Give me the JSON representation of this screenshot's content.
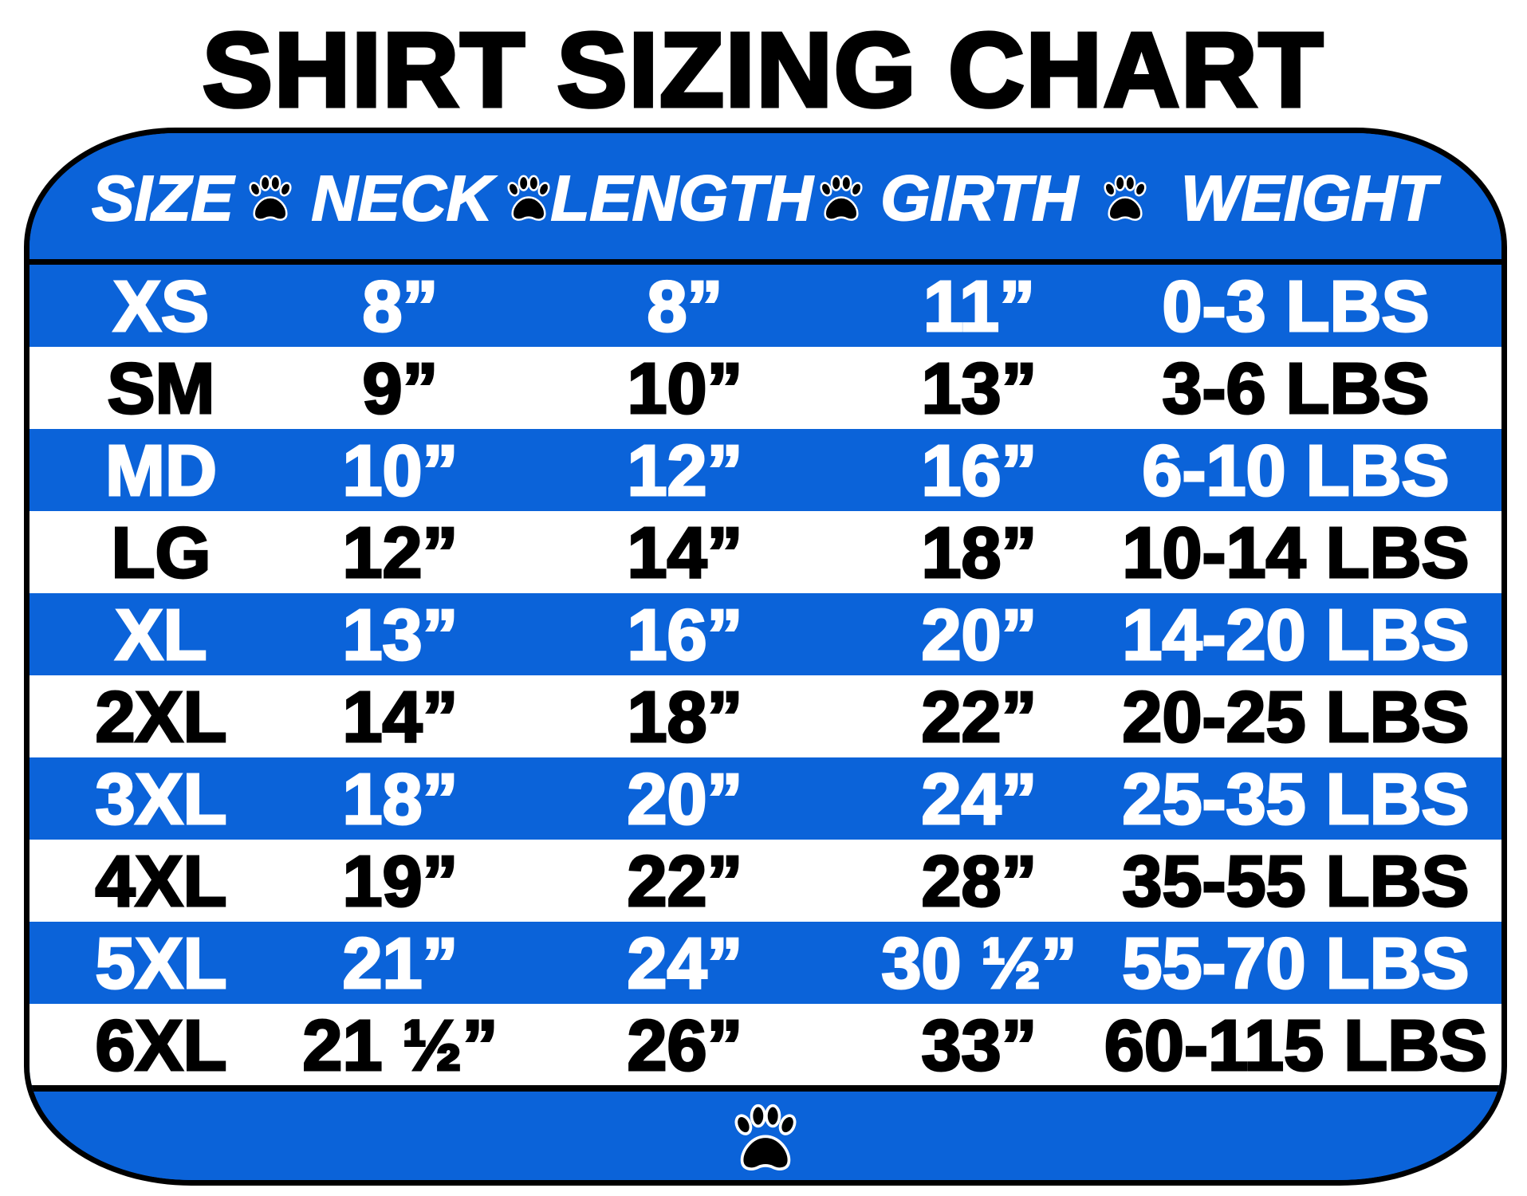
{
  "title": "SHIRT SIZING CHART",
  "colors": {
    "band_blue": "#0b63d9",
    "border": "#000000",
    "text_on_blue": "#ffffff",
    "text_on_white": "#000000"
  },
  "header": {
    "columns": [
      "SIZE",
      "NECK",
      "LENGTH",
      "GIRTH",
      "WEIGHT"
    ],
    "separator_icon": "paw-print-icon"
  },
  "rows": [
    {
      "size": "XS",
      "neck": "8”",
      "length": "8”",
      "girth": "11”",
      "weight": "0-3 LBS"
    },
    {
      "size": "SM",
      "neck": "9”",
      "length": "10”",
      "girth": "13”",
      "weight": "3-6 LBS"
    },
    {
      "size": "MD",
      "neck": "10”",
      "length": "12”",
      "girth": "16”",
      "weight": "6-10 LBS"
    },
    {
      "size": "LG",
      "neck": "12”",
      "length": "14”",
      "girth": "18”",
      "weight": "10-14 LBS"
    },
    {
      "size": "XL",
      "neck": "13”",
      "length": "16”",
      "girth": "20”",
      "weight": "14-20 LBS"
    },
    {
      "size": "2XL",
      "neck": "14”",
      "length": "18”",
      "girth": "22”",
      "weight": "20-25 LBS"
    },
    {
      "size": "3XL",
      "neck": "18”",
      "length": "20”",
      "girth": "24”",
      "weight": "25-35 LBS"
    },
    {
      "size": "4XL",
      "neck": "19”",
      "length": "22”",
      "girth": "28”",
      "weight": "35-55 LBS"
    },
    {
      "size": "5XL",
      "neck": "21”",
      "length": "24”",
      "girth": "30 ½”",
      "weight": "55-70 LBS"
    },
    {
      "size": "6XL",
      "neck": "21 ½”",
      "length": "26”",
      "girth": "33”",
      "weight": "60-115 LBS"
    }
  ],
  "footer": {
    "icon": "paw-print-icon"
  }
}
